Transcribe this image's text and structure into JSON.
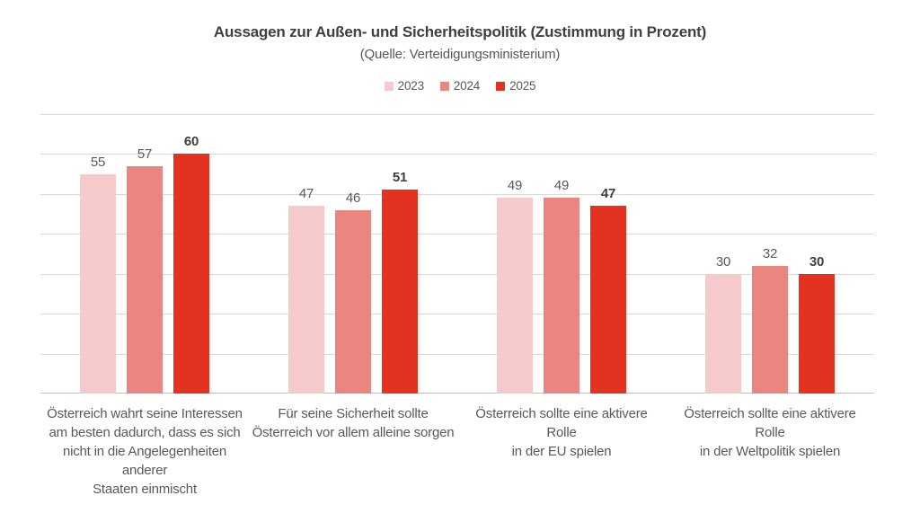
{
  "header": {
    "title": "Aussagen zur Außen- und Sicherheitspolitik (Zustimmung in Prozent)",
    "subtitle": "(Quelle: Verteidigungsministerium)"
  },
  "colors": {
    "title_text": "#3f3f3f",
    "body_text": "#595959",
    "gridline": "#d9d9d9",
    "baseline": "#bfbfbf"
  },
  "chart_data": {
    "type": "bar",
    "title": "Aussagen zur Außen- und Sicherheitspolitik (Zustimmung in Prozent)",
    "subtitle": "(Quelle: Verteidigungsministerium)",
    "xlabel": "",
    "ylabel": "",
    "ylim": [
      0,
      70
    ],
    "grid": true,
    "grid_step": 10,
    "legend_position": "top",
    "value_labels": true,
    "categories": [
      "Österreich wahrt seine Interessen\nam besten dadurch, dass es sich\nnicht in die Angelegenheiten anderer\nStaaten einmischt",
      "Für seine Sicherheit sollte\nÖsterreich vor allem alleine sorgen",
      "Österreich sollte eine aktivere Rolle\nin der EU spielen",
      "Österreich sollte eine aktivere Rolle\nin der Weltpolitik spielen"
    ],
    "series": [
      {
        "name": "2023",
        "color": "#f4cbca",
        "values": [
          55,
          47,
          49,
          30
        ],
        "bold_labels": false
      },
      {
        "name": "2024",
        "color": "#e8867f",
        "values": [
          57,
          46,
          49,
          32
        ],
        "bold_labels": false
      },
      {
        "name": "2025",
        "color": "#e3321f",
        "values": [
          60,
          51,
          47,
          30
        ],
        "bold_labels": true
      }
    ]
  }
}
